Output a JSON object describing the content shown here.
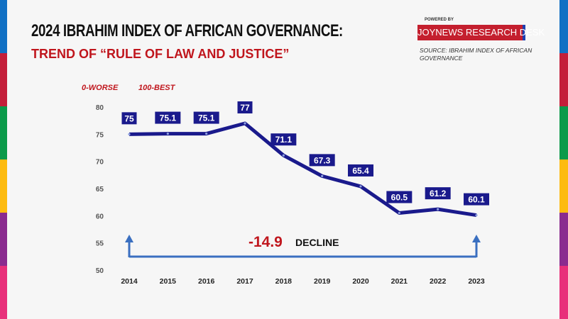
{
  "header": {
    "title": "2024 IBRAHIM INDEX OF AFRICAN GOVERNANCE:",
    "subtitle": "TREND OF “RULE OF LAW AND JUSTICE”",
    "powered_by": "POWERED BY",
    "brand": "JOYNEWS RESEARCH DESK",
    "source": "SOURCE: IBRAHIM INDEX OF AFRICAN GOVERNANCE"
  },
  "scale_note": {
    "worst": "0-WORSE",
    "best": "100-BEST"
  },
  "stripe_colors": [
    "#1170c4",
    "#c41f3a",
    "#0b9a4a",
    "#fdbb10",
    "#8a2b8f",
    "#e8307a"
  ],
  "chart_data": {
    "type": "line",
    "x": [
      "2014",
      "2015",
      "2016",
      "2017",
      "2018",
      "2019",
      "2020",
      "2021",
      "2022",
      "2023"
    ],
    "series": [
      {
        "values": [
          75,
          75.1,
          75.1,
          77,
          71.1,
          67.3,
          65.4,
          60.5,
          61.2,
          60.1
        ]
      }
    ],
    "data_labels": [
      "75",
      "75.1",
      "75.1",
      "77",
      "71.1",
      "67.3",
      "65.4",
      "60.5",
      "61.2",
      "60.1"
    ],
    "ylim": [
      50,
      80
    ],
    "yticks": [
      "50",
      "55",
      "60",
      "65",
      "70",
      "75",
      "80"
    ],
    "grid": false,
    "line_color": "#1a1a8c",
    "annotation": {
      "value": "-14.9",
      "text": "DECLINE",
      "value_color": "#c0161d",
      "arrow_color": "#3a6fc0"
    }
  }
}
